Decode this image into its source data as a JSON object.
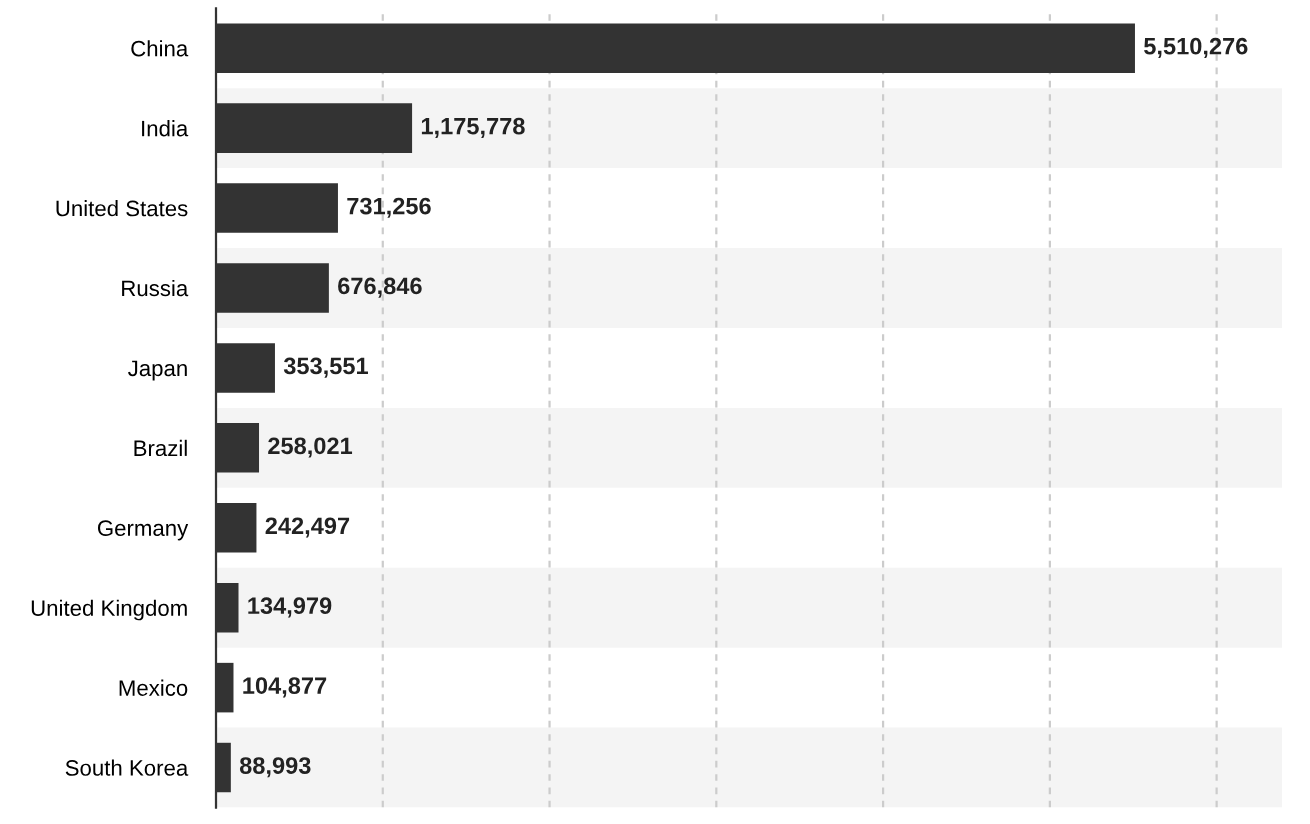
{
  "chart_data": {
    "type": "bar",
    "orientation": "horizontal",
    "categories": [
      "China",
      "India",
      "United States",
      "Russia",
      "Japan",
      "Brazil",
      "Germany",
      "United Kingdom",
      "Mexico",
      "South Korea"
    ],
    "values": [
      5510276,
      1175778,
      731256,
      676846,
      353551,
      258021,
      242497,
      134979,
      104877,
      88993
    ],
    "value_labels": [
      "5,510,276",
      "1,175,778",
      "731,256",
      "676,846",
      "353,551",
      "258,021",
      "242,497",
      "134,979",
      "104,877",
      "88,993"
    ],
    "color": "#333333",
    "grid": "x",
    "tick_labels": "y"
  }
}
